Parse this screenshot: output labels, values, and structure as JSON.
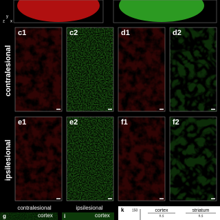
{
  "axis_labels": [
    "y",
    "z",
    "x"
  ],
  "panels": [
    {
      "label": "c1"
    },
    {
      "label": "c2"
    },
    {
      "label": "d1"
    },
    {
      "label": "d2"
    },
    {
      "label": "e1"
    },
    {
      "label": "e2"
    },
    {
      "label": "f1"
    },
    {
      "label": "f2"
    }
  ],
  "row_labels": [
    "contralesional",
    "ipsilesional"
  ],
  "bottom": {
    "column_labels": [
      "contralesional",
      "ipsilesional"
    ],
    "panels": [
      {
        "label": "g",
        "region": "cortex"
      },
      {
        "label": "i",
        "region": "cortex"
      }
    ],
    "plot": {
      "label": "k",
      "tick": 150,
      "groups": [
        {
          "name": "cortex",
          "stat": "n.s"
        },
        {
          "name": "striatum",
          "stat": "n.s"
        }
      ]
    }
  }
}
